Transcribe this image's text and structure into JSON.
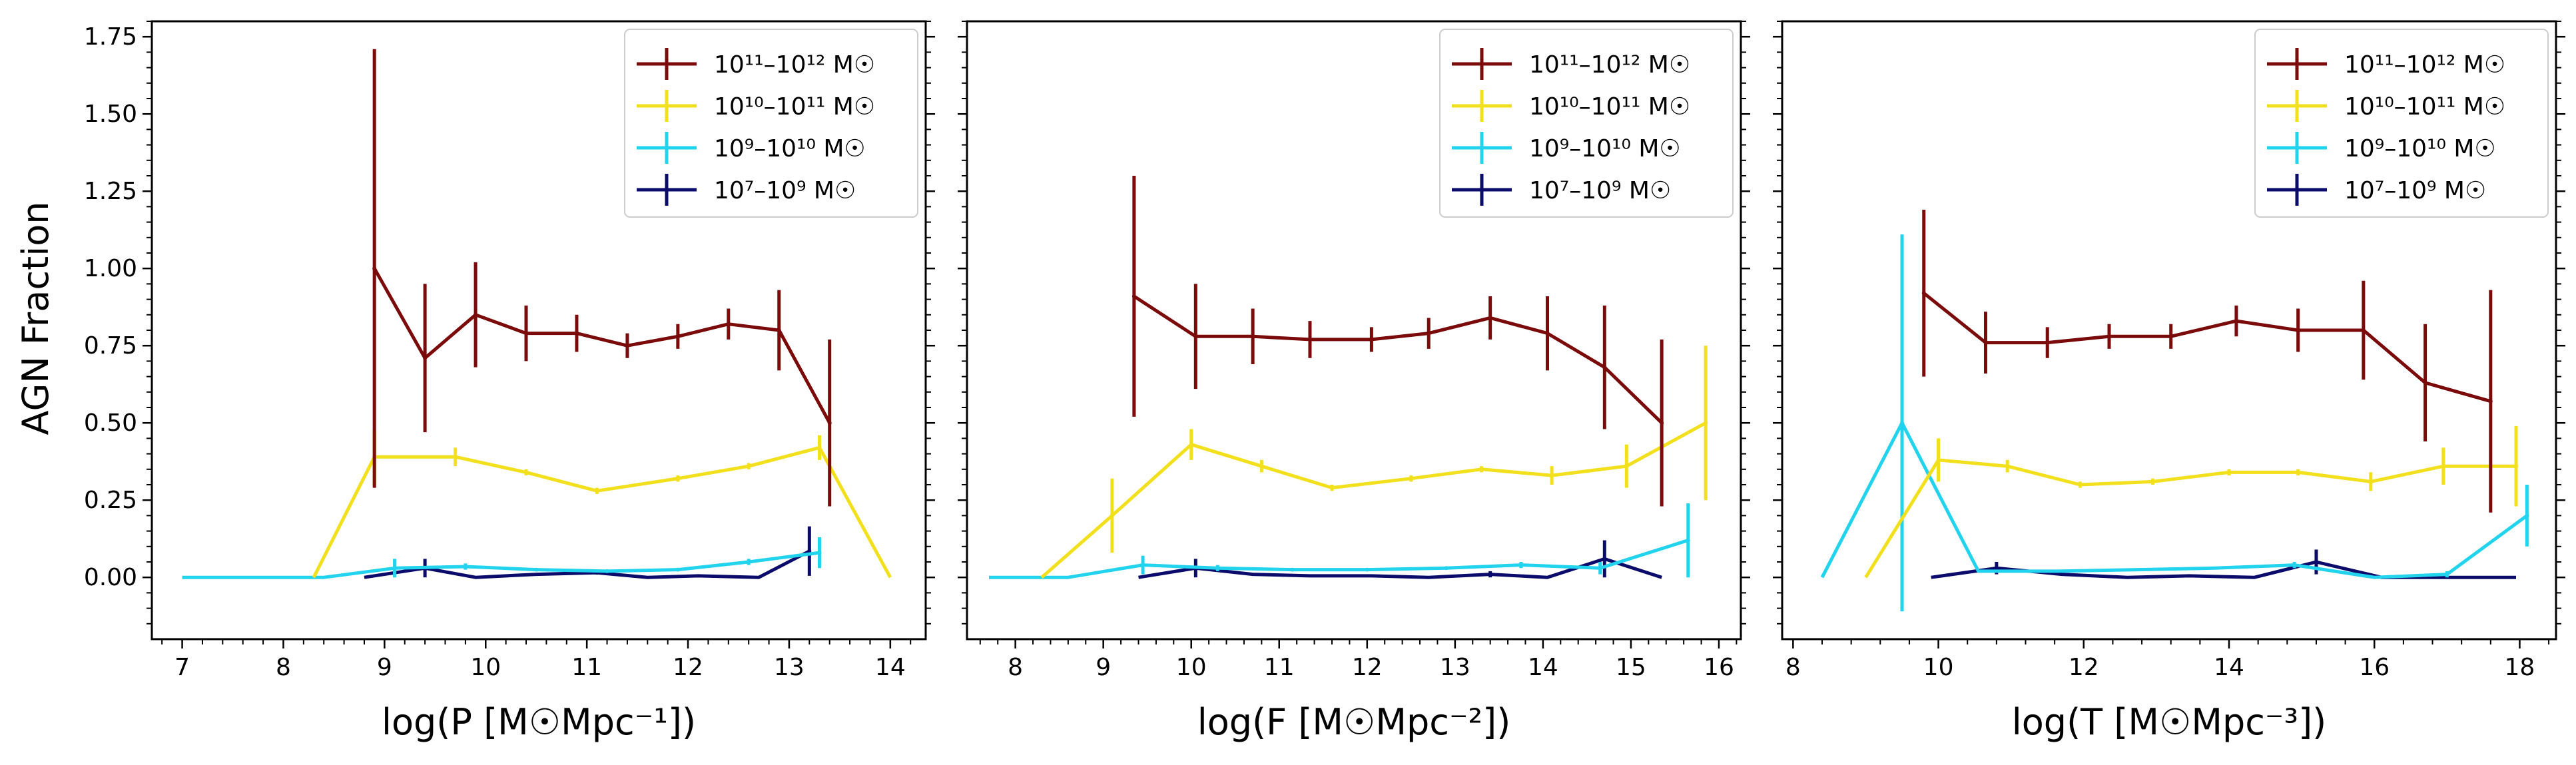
{
  "ylabel": "AGN Fraction",
  "legend_entries": [
    {
      "key": "high",
      "label": "10¹¹–10¹² M☉",
      "color": "#7b0a0a"
    },
    {
      "key": "midhigh",
      "label": "10¹⁰–10¹¹ M☉",
      "color": "#f2e01d"
    },
    {
      "key": "midlow",
      "label": "10⁹–10¹⁰ M☉",
      "color": "#22d3ee"
    },
    {
      "key": "low",
      "label": "10⁷–10⁹ M☉",
      "color": "#0b0b6b"
    }
  ],
  "chart_data": [
    {
      "type": "line",
      "xlabel": "log(P [M☉Mpc⁻¹])",
      "ylabel": "AGN Fraction",
      "xlim": [
        6.7,
        14.35
      ],
      "ylim": [
        -0.2,
        1.8
      ],
      "xticks": [
        7,
        8,
        9,
        10,
        11,
        12,
        13,
        14
      ],
      "yticks": [
        0.0,
        0.25,
        0.5,
        0.75,
        1.0,
        1.25,
        1.5,
        1.75
      ],
      "ytick_labels": [
        "0.00",
        "0.25",
        "0.50",
        "0.75",
        "1.00",
        "1.25",
        "1.50",
        "1.75"
      ],
      "show_yticklabels": true,
      "legend_position": "top-right",
      "series": [
        {
          "key": "high",
          "name": "10¹¹–10¹² M☉",
          "x": [
            8.9,
            9.4,
            9.9,
            10.4,
            10.9,
            11.4,
            11.9,
            12.4,
            12.9,
            13.4
          ],
          "y": [
            1.0,
            0.71,
            0.85,
            0.79,
            0.79,
            0.75,
            0.78,
            0.82,
            0.8,
            0.5
          ],
          "err": [
            0.71,
            0.24,
            0.17,
            0.09,
            0.06,
            0.04,
            0.04,
            0.05,
            0.13,
            0.27
          ]
        },
        {
          "key": "midhigh",
          "name": "10¹⁰–10¹¹ M☉",
          "x": [
            8.3,
            8.9,
            9.7,
            10.4,
            11.1,
            11.9,
            12.6,
            13.3,
            14.0
          ],
          "y": [
            0.0,
            0.39,
            0.39,
            0.34,
            0.28,
            0.32,
            0.36,
            0.42,
            0.0
          ],
          "err": [
            0,
            0.09,
            0.03,
            0.01,
            0.01,
            0.01,
            0.01,
            0.04,
            0
          ]
        },
        {
          "key": "midlow",
          "name": "10⁹–10¹⁰ M☉",
          "x": [
            7.0,
            8.4,
            9.1,
            9.8,
            10.5,
            11.2,
            11.9,
            12.6,
            13.3
          ],
          "y": [
            0.0,
            0.0,
            0.03,
            0.035,
            0.025,
            0.02,
            0.025,
            0.05,
            0.08
          ],
          "err": [
            0,
            0,
            0.03,
            0.01,
            0.005,
            0.005,
            0.005,
            0.01,
            0.05
          ]
        },
        {
          "key": "low",
          "name": "10⁷–10⁹ M☉",
          "x": [
            8.8,
            9.4,
            9.9,
            10.5,
            11.1,
            11.6,
            12.1,
            12.7,
            13.2
          ],
          "y": [
            0.0,
            0.03,
            0.0,
            0.01,
            0.015,
            0.0,
            0.005,
            0.0,
            0.085
          ],
          "err": [
            0,
            0.03,
            0,
            0,
            0.005,
            0,
            0,
            0,
            0.08
          ]
        }
      ]
    },
    {
      "type": "line",
      "xlabel": "log(F [M☉Mpc⁻²])",
      "ylabel": "",
      "xlim": [
        7.45,
        16.25
      ],
      "ylim": [
        -0.2,
        1.8
      ],
      "xticks": [
        8,
        9,
        10,
        11,
        12,
        13,
        14,
        15,
        16
      ],
      "yticks": [
        0.0,
        0.25,
        0.5,
        0.75,
        1.0,
        1.25,
        1.5,
        1.75
      ],
      "ytick_labels": [
        "",
        "",
        "",
        "",
        "",
        "",
        "",
        ""
      ],
      "show_yticklabels": false,
      "legend_position": "top-right",
      "series": [
        {
          "key": "high",
          "name": "10¹¹–10¹² M☉",
          "x": [
            9.35,
            10.05,
            10.7,
            11.35,
            12.05,
            12.7,
            13.4,
            14.05,
            14.7,
            15.35
          ],
          "y": [
            0.91,
            0.78,
            0.78,
            0.77,
            0.77,
            0.79,
            0.84,
            0.79,
            0.68,
            0.5
          ],
          "err": [
            0.39,
            0.17,
            0.09,
            0.06,
            0.04,
            0.05,
            0.07,
            0.12,
            0.2,
            0.27
          ]
        },
        {
          "key": "midhigh",
          "name": "10¹⁰–10¹¹ M☉",
          "x": [
            8.3,
            9.1,
            10.0,
            10.8,
            11.6,
            12.5,
            13.3,
            14.1,
            14.95,
            15.85
          ],
          "y": [
            0.0,
            0.2,
            0.43,
            0.36,
            0.29,
            0.32,
            0.35,
            0.33,
            0.36,
            0.5
          ],
          "err": [
            0,
            0.12,
            0.05,
            0.02,
            0.01,
            0.01,
            0.01,
            0.03,
            0.07,
            0.25
          ]
        },
        {
          "key": "midlow",
          "name": "10⁹–10¹⁰ M☉",
          "x": [
            7.7,
            8.6,
            9.45,
            10.3,
            11.15,
            12.0,
            12.9,
            13.75,
            14.65,
            15.65
          ],
          "y": [
            0.0,
            0.0,
            0.04,
            0.03,
            0.025,
            0.025,
            0.03,
            0.04,
            0.03,
            0.12
          ],
          "err": [
            0,
            0,
            0.03,
            0.01,
            0.005,
            0.005,
            0.005,
            0.01,
            0.02,
            0.12
          ]
        },
        {
          "key": "low",
          "name": "10⁷–10⁹ M☉",
          "x": [
            9.4,
            10.05,
            10.7,
            11.35,
            12.05,
            12.7,
            13.4,
            14.05,
            14.7,
            15.35
          ],
          "y": [
            0.0,
            0.03,
            0.01,
            0.005,
            0.005,
            0.0,
            0.01,
            0.0,
            0.06,
            0.0
          ],
          "err": [
            0,
            0.03,
            0,
            0,
            0,
            0,
            0.01,
            0,
            0.06,
            0
          ]
        }
      ]
    },
    {
      "type": "line",
      "xlabel": "log(T [M☉Mpc⁻³])",
      "ylabel": "",
      "xlim": [
        7.85,
        18.5
      ],
      "ylim": [
        -0.2,
        1.8
      ],
      "xticks": [
        8,
        10,
        12,
        14,
        16,
        18
      ],
      "yticks": [
        0.0,
        0.25,
        0.5,
        0.75,
        1.0,
        1.25,
        1.5,
        1.75
      ],
      "ytick_labels": [
        "",
        "",
        "",
        "",
        "",
        "",
        "",
        ""
      ],
      "show_yticklabels": false,
      "legend_position": "top-right",
      "series": [
        {
          "key": "high",
          "name": "10¹¹–10¹² M☉",
          "x": [
            9.8,
            10.65,
            11.5,
            12.35,
            13.2,
            14.1,
            14.95,
            15.85,
            16.7,
            17.6
          ],
          "y": [
            0.92,
            0.76,
            0.76,
            0.78,
            0.78,
            0.83,
            0.8,
            0.8,
            0.63,
            0.57
          ],
          "err": [
            0.27,
            0.1,
            0.05,
            0.04,
            0.04,
            0.05,
            0.07,
            0.16,
            0.19,
            0.36
          ]
        },
        {
          "key": "midhigh",
          "name": "10¹⁰–10¹¹ M☉",
          "x": [
            9.0,
            10.0,
            10.95,
            11.95,
            12.95,
            14.0,
            14.95,
            15.95,
            16.95,
            17.95
          ],
          "y": [
            0.0,
            0.38,
            0.36,
            0.3,
            0.31,
            0.34,
            0.34,
            0.31,
            0.36,
            0.36
          ],
          "err": [
            0,
            0.07,
            0.02,
            0.01,
            0.01,
            0.01,
            0.01,
            0.03,
            0.06,
            0.13
          ]
        },
        {
          "key": "midlow",
          "name": "10⁹–10¹⁰ M☉",
          "x": [
            8.4,
            9.5,
            10.55,
            11.65,
            12.75,
            13.8,
            14.9,
            16.0,
            17.0,
            18.1
          ],
          "y": [
            0.0,
            0.5,
            0.02,
            0.02,
            0.025,
            0.03,
            0.04,
            0.0,
            0.01,
            0.2
          ],
          "err": [
            0,
            0.61,
            0,
            0,
            0,
            0,
            0.01,
            0,
            0.01,
            0.1
          ]
        },
        {
          "key": "low",
          "name": "10⁷–10⁹ M☉",
          "x": [
            9.9,
            10.8,
            11.7,
            12.6,
            13.45,
            14.35,
            15.2,
            16.1,
            17.0,
            17.95
          ],
          "y": [
            0.0,
            0.03,
            0.01,
            0.0,
            0.005,
            0.0,
            0.05,
            0.0,
            0.0,
            0.0
          ],
          "err": [
            0,
            0.02,
            0,
            0,
            0,
            0,
            0.04,
            0,
            0,
            0
          ]
        }
      ]
    }
  ]
}
